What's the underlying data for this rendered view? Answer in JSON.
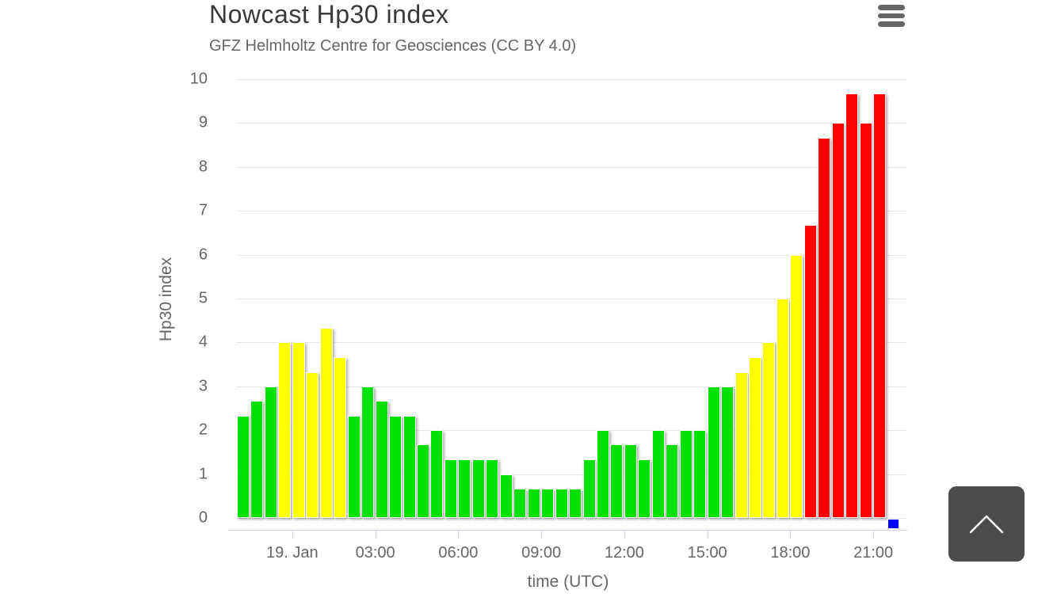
{
  "header": {
    "title": "Nowcast Hp30 index",
    "subtitle": "GFZ Helmholtz Centre for Geosciences (CC BY 4.0)",
    "menu_icon": "hamburger-icon"
  },
  "scroll_top_button": {
    "icon": "chevron-up-icon"
  },
  "colors": {
    "title_text": "#3a3a3a",
    "axis_text": "#666666",
    "gridline": "#e6e6e6",
    "axis_line": "#ccd6eb",
    "menu_icon": "#666666",
    "scroll_button_bg": "#4b4b4b",
    "scroll_button_glyph": "#ffffff"
  },
  "chart_data": {
    "type": "bar",
    "title": "Nowcast Hp30 index",
    "subtitle": "GFZ Helmholtz Centre for Geosciences (CC BY 4.0)",
    "xlabel": "time (UTC)",
    "ylabel": "Hp30 index",
    "ylim": [
      0,
      10
    ],
    "grid": true,
    "legend": false,
    "y_ticks": [
      0,
      1,
      2,
      3,
      4,
      5,
      6,
      7,
      8,
      9,
      10
    ],
    "x_tick_labels": [
      "19. Jan",
      "03:00",
      "06:00",
      "09:00",
      "12:00",
      "15:00",
      "18:00",
      "21:00"
    ],
    "interval_minutes": 30,
    "times": [
      "22:00",
      "22:30",
      "23:00",
      "23:30",
      "00:00",
      "00:30",
      "01:00",
      "01:30",
      "02:00",
      "02:30",
      "03:00",
      "03:30",
      "04:00",
      "04:30",
      "05:00",
      "05:30",
      "06:00",
      "06:30",
      "07:00",
      "07:30",
      "08:00",
      "08:30",
      "09:00",
      "09:30",
      "10:00",
      "10:30",
      "11:00",
      "11:30",
      "12:00",
      "12:30",
      "13:00",
      "13:30",
      "14:00",
      "14:30",
      "15:00",
      "15:30",
      "16:00",
      "16:30",
      "17:00",
      "17:30",
      "18:00",
      "18:30",
      "19:00",
      "19:30",
      "20:00",
      "20:30",
      "21:00",
      "21:30"
    ],
    "values": [
      2.33,
      2.67,
      3,
      4,
      4,
      3.33,
      4.33,
      3.67,
      2.33,
      3,
      2.67,
      2.33,
      2.33,
      1.67,
      2,
      1.33,
      1.33,
      1.33,
      1.33,
      1,
      0.67,
      0.67,
      0.67,
      0.67,
      0.67,
      1.33,
      2,
      1.67,
      1.67,
      1.33,
      2,
      1.67,
      2,
      2,
      3,
      3,
      3.33,
      3.67,
      4,
      5,
      6,
      6.67,
      8.67,
      9,
      9.67,
      9,
      9.67,
      0.33
    ],
    "point_colors": [
      "green",
      "green",
      "green",
      "yellow",
      "yellow",
      "yellow",
      "yellow",
      "yellow",
      "green",
      "green",
      "green",
      "green",
      "green",
      "green",
      "green",
      "green",
      "green",
      "green",
      "green",
      "green",
      "green",
      "green",
      "green",
      "green",
      "green",
      "green",
      "green",
      "green",
      "green",
      "green",
      "green",
      "green",
      "green",
      "green",
      "green",
      "green",
      "yellow",
      "yellow",
      "yellow",
      "yellow",
      "yellow",
      "red",
      "red",
      "red",
      "red",
      "red",
      "red",
      "blue"
    ],
    "palette": {
      "green": "#00e100",
      "yellow": "#ffff00",
      "red": "#ff0000",
      "blue": "#0000ff"
    }
  }
}
